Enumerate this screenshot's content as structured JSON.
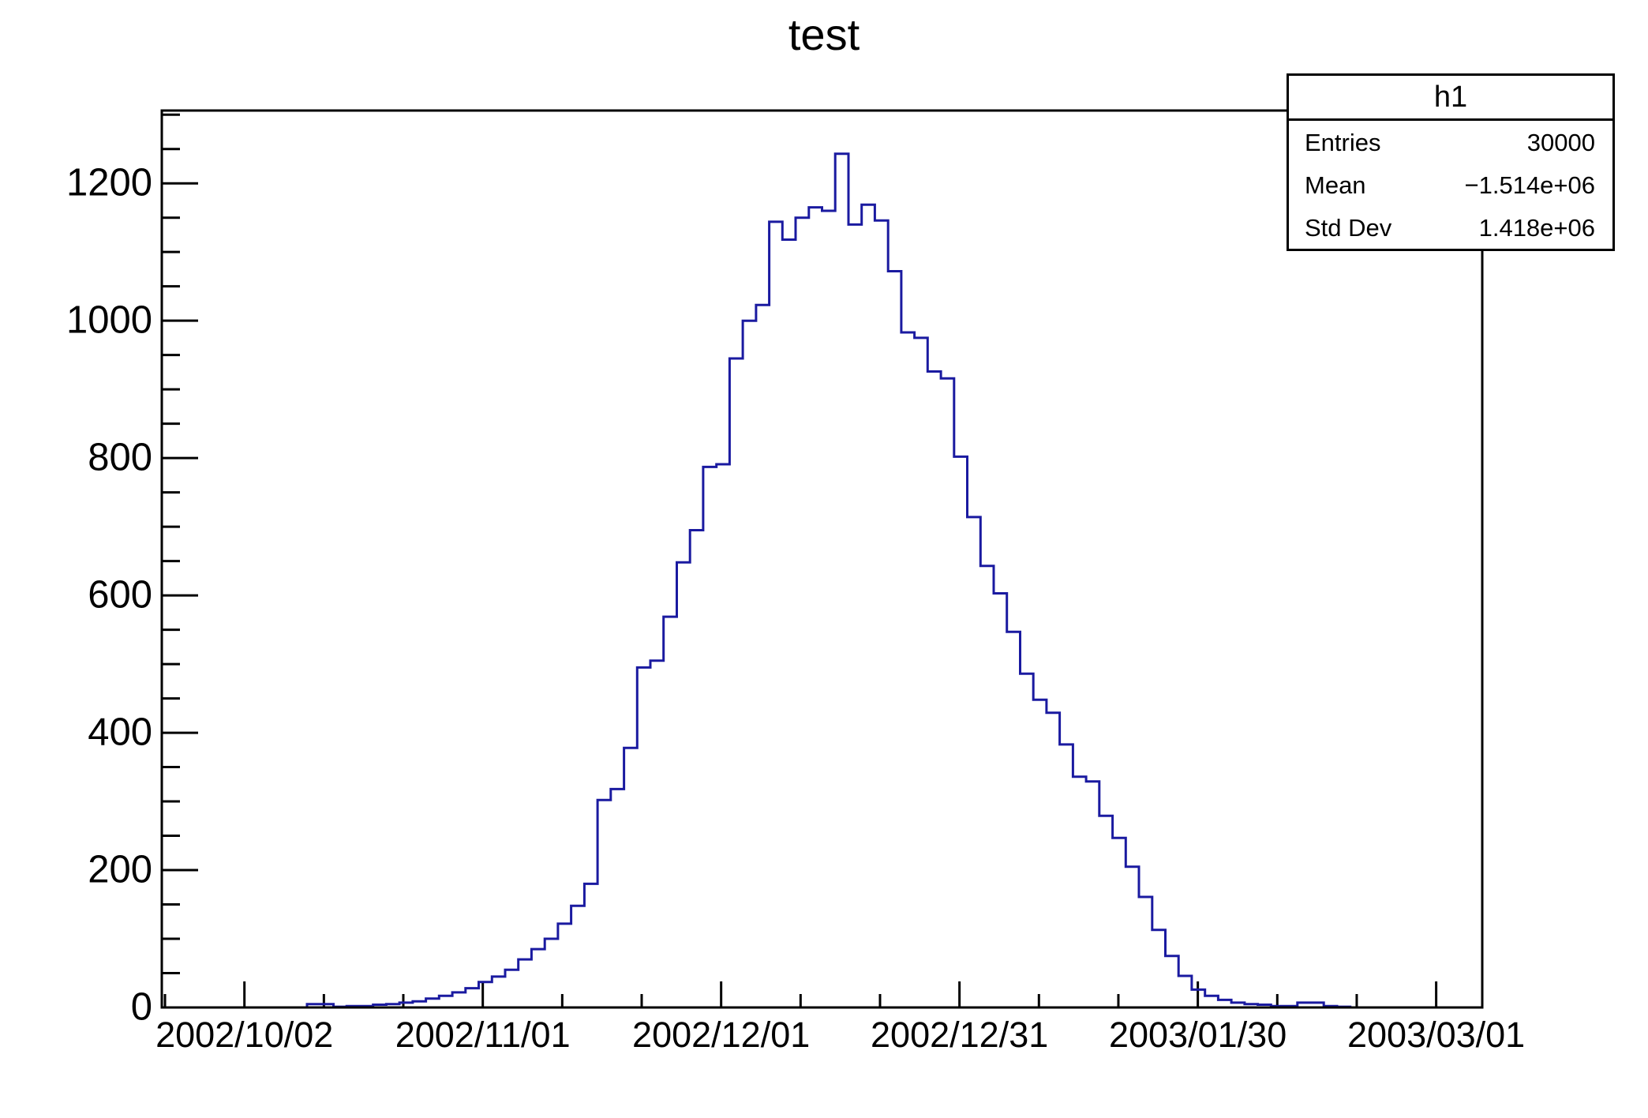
{
  "page": {
    "background": "#ffffff",
    "frame_color": "#000000"
  },
  "chart_data": {
    "type": "bar",
    "subtype": "step-histogram",
    "title": "test",
    "hist_name": "h1",
    "line_color": "#1a1aa0",
    "grid": false,
    "legend_position": "none",
    "x_axis": {
      "kind": "time",
      "tick_labels": [
        "2002/10/02",
        "2002/11/01",
        "2002/12/01",
        "2002/12/31",
        "2003/01/30",
        "2003/03/01"
      ],
      "tick_day_offsets": [
        10.4,
        40.4,
        70.4,
        100.4,
        130.4,
        160.4
      ],
      "minor_tick_day_step": 10,
      "range_days": [
        0,
        166.2
      ],
      "axis_start_date": "2002/09/21"
    },
    "y_axis": {
      "tick_values": [
        0,
        200,
        400,
        600,
        800,
        1000,
        1200
      ],
      "minor_tick_step": 50,
      "range": [
        0,
        1306
      ]
    },
    "bins": {
      "count": 100,
      "width_days": 1.662,
      "values": [
        0,
        0,
        0,
        0,
        0,
        0,
        0,
        0,
        0,
        0,
        0,
        5,
        5,
        1,
        2,
        2,
        4,
        5,
        7,
        9,
        13,
        17,
        22,
        28,
        37,
        45,
        55,
        70,
        85,
        100,
        122,
        148,
        180,
        302,
        318,
        378,
        495,
        505,
        569,
        648,
        695,
        787,
        791,
        945,
        1000,
        1023,
        1144,
        1118,
        1150,
        1165,
        1160,
        1243,
        1140,
        1169,
        1146,
        1072,
        983,
        975,
        926,
        916,
        802,
        714,
        643,
        603,
        547,
        486,
        448,
        429,
        383,
        336,
        329,
        279,
        247,
        205,
        161,
        113,
        75,
        46,
        26,
        17,
        11,
        7,
        5,
        4,
        2,
        2,
        7,
        7,
        2,
        1,
        0,
        0,
        0,
        0,
        0,
        0,
        0,
        0,
        0,
        0
      ]
    }
  },
  "stats_box": {
    "title": "h1",
    "rows": [
      {
        "label": "Entries",
        "value": "30000"
      },
      {
        "label": "Mean",
        "value": "−1.514e+06"
      },
      {
        "label": "Std Dev",
        "value": "1.418e+06"
      }
    ]
  }
}
